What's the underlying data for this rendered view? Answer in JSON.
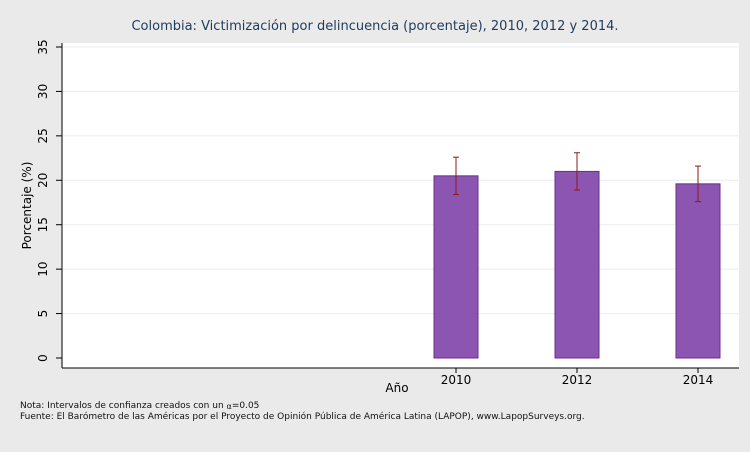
{
  "chart_data": {
    "type": "bar",
    "title": "Colombia: Victimización por delincuencia (porcentaje), 2010, 2012 y 2014.",
    "xlabel": "Año",
    "ylabel": "Porcentaje (%)",
    "categories": [
      "2010",
      "2012",
      "2014"
    ],
    "values": [
      20.5,
      21.0,
      19.6
    ],
    "ci_low": [
      18.4,
      18.9,
      17.6
    ],
    "ci_high": [
      22.6,
      23.1,
      21.6
    ],
    "ylim": [
      0,
      36
    ],
    "yticks": [
      0,
      5,
      10,
      15,
      20,
      25,
      30,
      35
    ],
    "grid": true,
    "bar_color": "#8c55b1",
    "bar_edge_color": "#6a2f8a",
    "error_bar_color": "#8b1a1a"
  },
  "notes": {
    "nota_prefix": "Nota: Intervalos de confianza creados con un ",
    "alpha_symbol": "α",
    "alpha_value": "=0.05",
    "fuente": "Fuente: El Barómetro de las Américas por el Proyecto de Opinión Pública de América Latina (LAPOP), www.LapopSurveys.org."
  }
}
